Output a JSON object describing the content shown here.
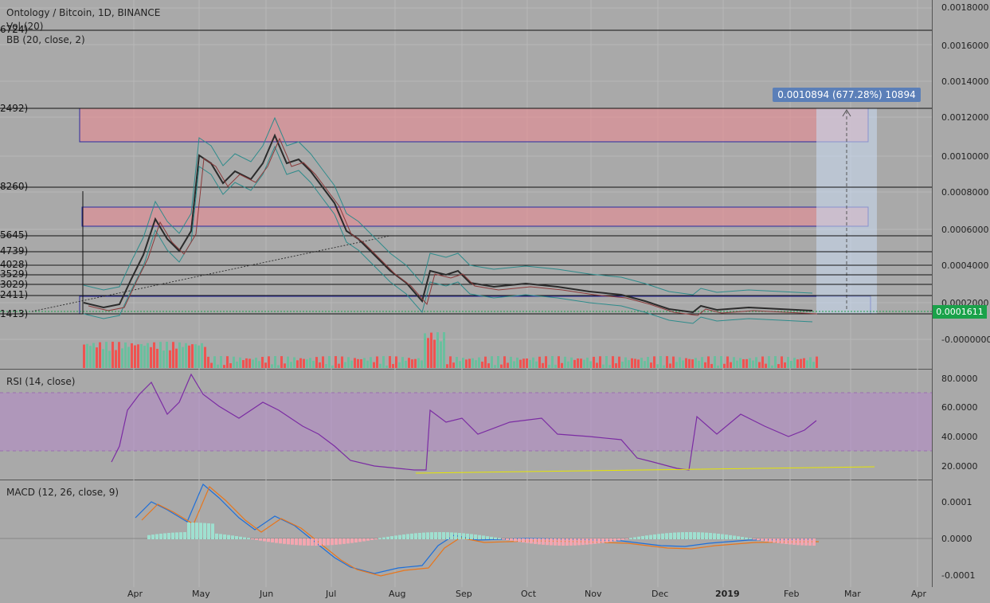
{
  "header": {
    "symbol": "Ontology / Bitcoin, 1D, BINANCE",
    "vol": "Vol (20)",
    "bb": "BB (20, close, 2)"
  },
  "levels": [
    "6724)",
    "2492)",
    "8260)",
    "5645)",
    "4739)",
    "4028)",
    "3529)",
    "3029)",
    "2411)",
    "1413)"
  ],
  "price_axis": [
    "0.0018000",
    "0.0016000",
    "0.0014000",
    "0.0012000",
    "0.0010000",
    "0.0008000",
    "0.0006000",
    "0.0004000",
    "0.0002000",
    "-0.0000000"
  ],
  "current_price": "0.0001611",
  "measurement": "0.0010894 (677.28%) 10894",
  "rsi": {
    "label": "RSI (14, close)",
    "axis": [
      "80.0000",
      "60.0000",
      "40.0000",
      "20.0000"
    ]
  },
  "macd": {
    "label": "MACD (12, 26, close, 9)",
    "axis": [
      "0.0001",
      "0.0000",
      "-0.0001"
    ]
  },
  "time_axis": [
    "Apr",
    "May",
    "Jun",
    "Jul",
    "Aug",
    "Sep",
    "Oct",
    "Nov",
    "Dec",
    "2019",
    "Feb",
    "Mar",
    "Apr"
  ],
  "colors": {
    "background": "#a9a9a9",
    "up": "#6abf9e",
    "down": "#ef5350",
    "bb_band": "#2e8b8b",
    "rsi": "#7b2ca3",
    "macd": "#1e6fd9",
    "signal": "#e8761b",
    "price_tag": "#1aa24a",
    "zone": "#e48d95"
  }
}
